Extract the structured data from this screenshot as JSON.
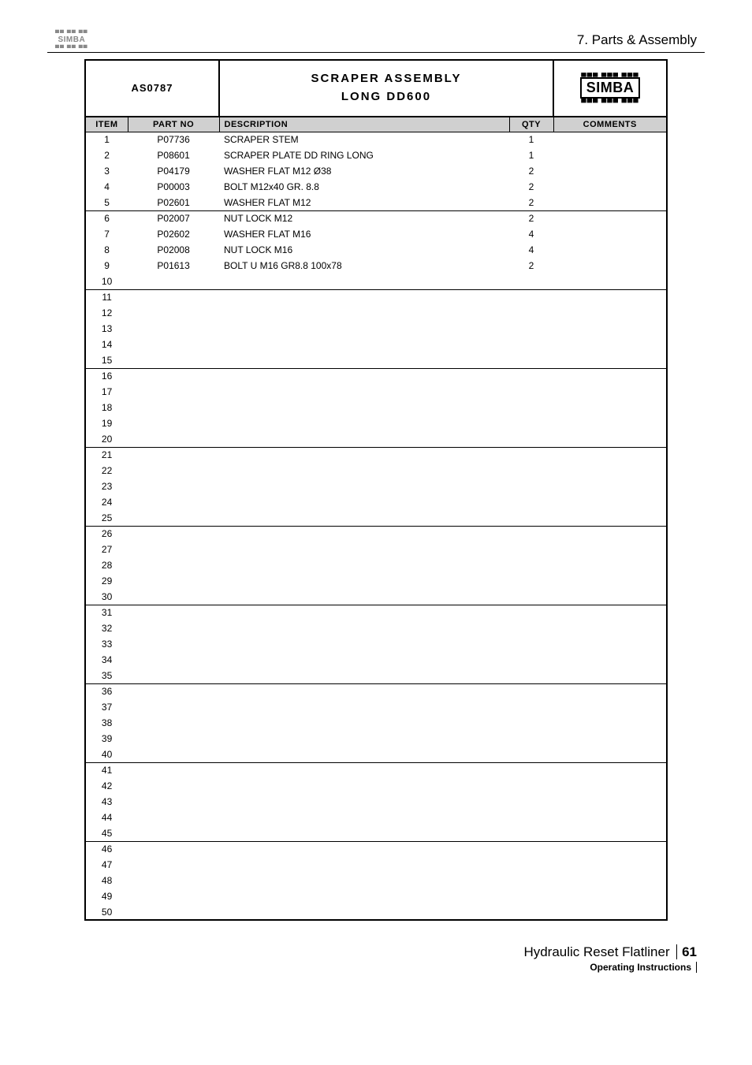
{
  "header": {
    "small_logo_top": "▀▀ ▀▀ ▀▀",
    "small_logo_mid": "SIMBA",
    "small_logo_bot": "▄▄ ▄▄ ▄▄",
    "section": "7. Parts & Assembly"
  },
  "title_block": {
    "code": "AS0787",
    "title_line1": "SCRAPER ASSEMBLY",
    "title_line2": "LONG DD600",
    "logo_bars_top": "▄▄▄ ▄▄▄ ▄▄▄",
    "logo_text": "SIMBA",
    "logo_bars_bot": "▀▀▀ ▀▀▀ ▀▀▀"
  },
  "columns": {
    "item": "ITEM",
    "part": "PART NO",
    "desc": "DESCRIPTION",
    "qty": "QTY",
    "comm": "COMMENTS"
  },
  "rows": [
    {
      "item": "1",
      "part": "P07736",
      "desc": "SCRAPER STEM",
      "qty": "1",
      "comm": ""
    },
    {
      "item": "2",
      "part": "P08601",
      "desc": "SCRAPER PLATE DD RING LONG",
      "qty": "1",
      "comm": ""
    },
    {
      "item": "3",
      "part": "P04179",
      "desc": "WASHER FLAT M12 Ø38",
      "qty": "2",
      "comm": ""
    },
    {
      "item": "4",
      "part": "P00003",
      "desc": "BOLT M12x40 GR. 8.8",
      "qty": "2",
      "comm": ""
    },
    {
      "item": "5",
      "part": "P02601",
      "desc": "WASHER FLAT M12",
      "qty": "2",
      "comm": ""
    },
    {
      "item": "6",
      "part": "P02007",
      "desc": "NUT LOCK M12",
      "qty": "2",
      "comm": ""
    },
    {
      "item": "7",
      "part": "P02602",
      "desc": "WASHER FLAT M16",
      "qty": "4",
      "comm": ""
    },
    {
      "item": "8",
      "part": "P02008",
      "desc": "NUT LOCK M16",
      "qty": "4",
      "comm": ""
    },
    {
      "item": "9",
      "part": "P01613",
      "desc": "BOLT U M16 GR8.8 100x78",
      "qty": "2",
      "comm": ""
    },
    {
      "item": "10",
      "part": "",
      "desc": "",
      "qty": "",
      "comm": ""
    },
    {
      "item": "11",
      "part": "",
      "desc": "",
      "qty": "",
      "comm": ""
    },
    {
      "item": "12",
      "part": "",
      "desc": "",
      "qty": "",
      "comm": ""
    },
    {
      "item": "13",
      "part": "",
      "desc": "",
      "qty": "",
      "comm": ""
    },
    {
      "item": "14",
      "part": "",
      "desc": "",
      "qty": "",
      "comm": ""
    },
    {
      "item": "15",
      "part": "",
      "desc": "",
      "qty": "",
      "comm": ""
    },
    {
      "item": "16",
      "part": "",
      "desc": "",
      "qty": "",
      "comm": ""
    },
    {
      "item": "17",
      "part": "",
      "desc": "",
      "qty": "",
      "comm": ""
    },
    {
      "item": "18",
      "part": "",
      "desc": "",
      "qty": "",
      "comm": ""
    },
    {
      "item": "19",
      "part": "",
      "desc": "",
      "qty": "",
      "comm": ""
    },
    {
      "item": "20",
      "part": "",
      "desc": "",
      "qty": "",
      "comm": ""
    },
    {
      "item": "21",
      "part": "",
      "desc": "",
      "qty": "",
      "comm": ""
    },
    {
      "item": "22",
      "part": "",
      "desc": "",
      "qty": "",
      "comm": ""
    },
    {
      "item": "23",
      "part": "",
      "desc": "",
      "qty": "",
      "comm": ""
    },
    {
      "item": "24",
      "part": "",
      "desc": "",
      "qty": "",
      "comm": ""
    },
    {
      "item": "25",
      "part": "",
      "desc": "",
      "qty": "",
      "comm": ""
    },
    {
      "item": "26",
      "part": "",
      "desc": "",
      "qty": "",
      "comm": ""
    },
    {
      "item": "27",
      "part": "",
      "desc": "",
      "qty": "",
      "comm": ""
    },
    {
      "item": "28",
      "part": "",
      "desc": "",
      "qty": "",
      "comm": ""
    },
    {
      "item": "29",
      "part": "",
      "desc": "",
      "qty": "",
      "comm": ""
    },
    {
      "item": "30",
      "part": "",
      "desc": "",
      "qty": "",
      "comm": ""
    },
    {
      "item": "31",
      "part": "",
      "desc": "",
      "qty": "",
      "comm": ""
    },
    {
      "item": "32",
      "part": "",
      "desc": "",
      "qty": "",
      "comm": ""
    },
    {
      "item": "33",
      "part": "",
      "desc": "",
      "qty": "",
      "comm": ""
    },
    {
      "item": "34",
      "part": "",
      "desc": "",
      "qty": "",
      "comm": ""
    },
    {
      "item": "35",
      "part": "",
      "desc": "",
      "qty": "",
      "comm": ""
    },
    {
      "item": "36",
      "part": "",
      "desc": "",
      "qty": "",
      "comm": ""
    },
    {
      "item": "37",
      "part": "",
      "desc": "",
      "qty": "",
      "comm": ""
    },
    {
      "item": "38",
      "part": "",
      "desc": "",
      "qty": "",
      "comm": ""
    },
    {
      "item": "39",
      "part": "",
      "desc": "",
      "qty": "",
      "comm": ""
    },
    {
      "item": "40",
      "part": "",
      "desc": "",
      "qty": "",
      "comm": ""
    },
    {
      "item": "41",
      "part": "",
      "desc": "",
      "qty": "",
      "comm": ""
    },
    {
      "item": "42",
      "part": "",
      "desc": "",
      "qty": "",
      "comm": ""
    },
    {
      "item": "43",
      "part": "",
      "desc": "",
      "qty": "",
      "comm": ""
    },
    {
      "item": "44",
      "part": "",
      "desc": "",
      "qty": "",
      "comm": ""
    },
    {
      "item": "45",
      "part": "",
      "desc": "",
      "qty": "",
      "comm": ""
    },
    {
      "item": "46",
      "part": "",
      "desc": "",
      "qty": "",
      "comm": ""
    },
    {
      "item": "47",
      "part": "",
      "desc": "",
      "qty": "",
      "comm": ""
    },
    {
      "item": "48",
      "part": "",
      "desc": "",
      "qty": "",
      "comm": ""
    },
    {
      "item": "49",
      "part": "",
      "desc": "",
      "qty": "",
      "comm": ""
    },
    {
      "item": "50",
      "part": "",
      "desc": "",
      "qty": "",
      "comm": ""
    }
  ],
  "separator_after": [
    5,
    10,
    15,
    20,
    25,
    30,
    35,
    40,
    45
  ],
  "footer": {
    "title": "Hydraulic Reset Flatliner",
    "page": "61",
    "sub": "Operating Instructions"
  }
}
